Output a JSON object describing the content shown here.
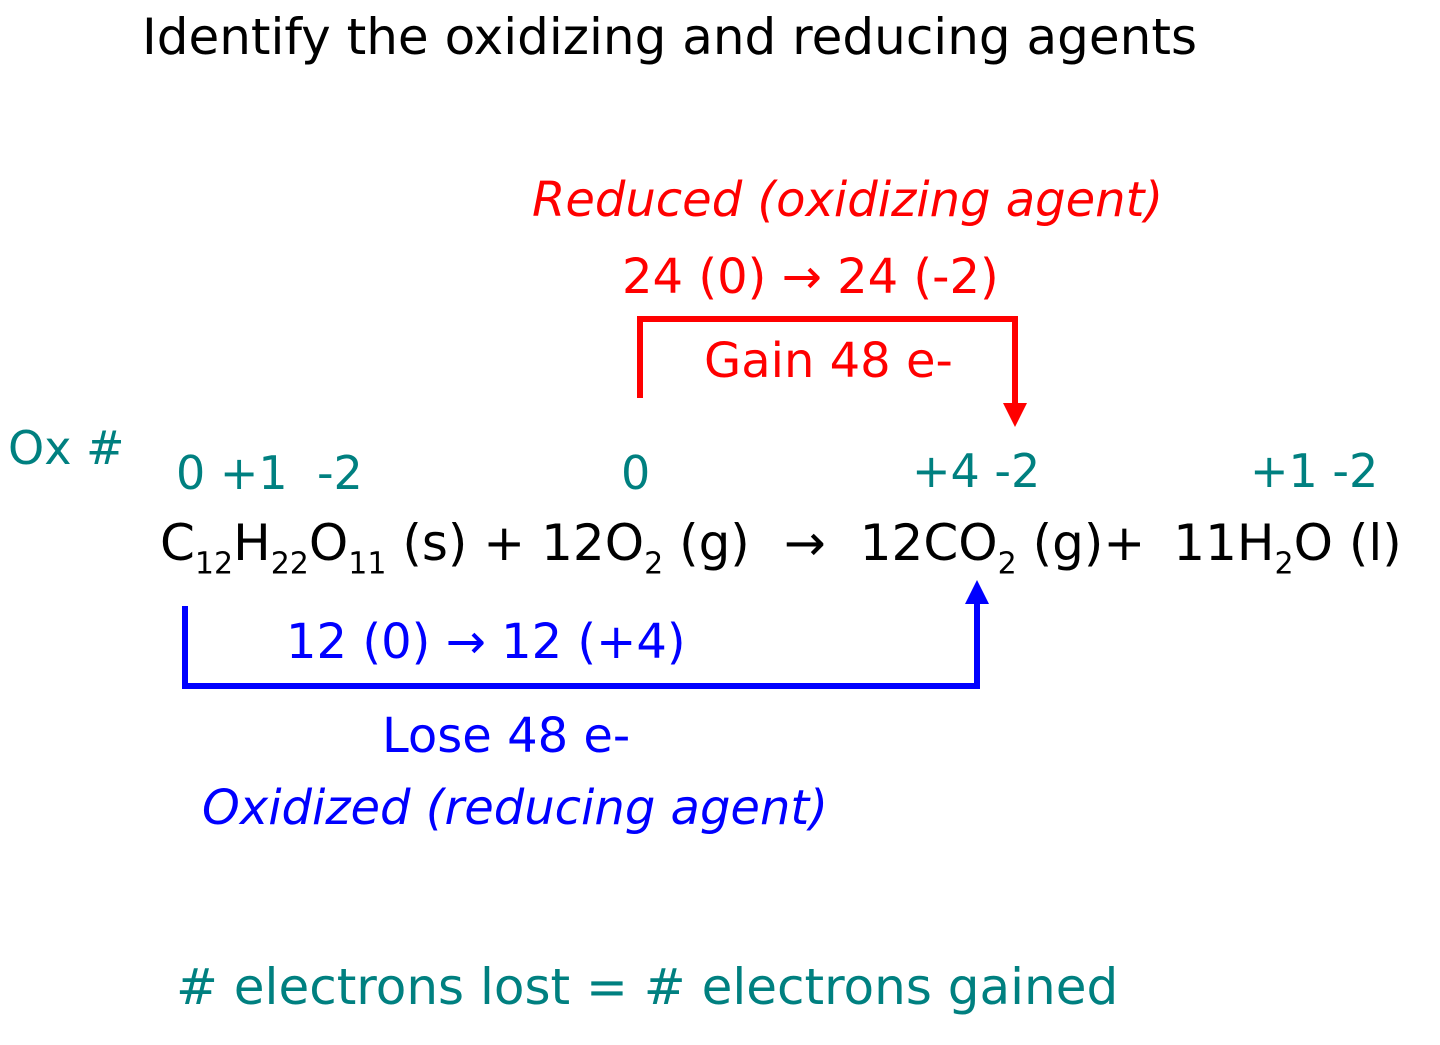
{
  "title": "Identify the oxidizing and reducing agents",
  "reduction": {
    "label": "Reduced (oxidizing agent)",
    "change": "24 (0) → 24 (-2)",
    "electrons": "Gain 48 e-",
    "color": "#ff0000"
  },
  "oxidation": {
    "change": "12 (0) → 12 (+4)",
    "electrons": "Lose 48 e-",
    "label": "Oxidized (reducing agent)",
    "color": "#0000ff"
  },
  "ox_numbers": {
    "header": "Ox #",
    "sucrose": "0 +1  -2",
    "oxygen": "0",
    "co2": "+4 -2",
    "water": "+1 -2",
    "color": "#008080"
  },
  "equation": {
    "c": "C",
    "c_sub": "12",
    "h": "H",
    "h_sub": "22",
    "o": "O",
    "o_sub": "11",
    "sucrose_state": " (s) + 12O",
    "o2_sub": "2",
    "o2_state": " (g)",
    "arrow": "→",
    "co2": "12CO",
    "co2_sub": "2",
    "co2_state": " (g)+",
    "h2o": "11H",
    "h2o_sub": "2",
    "h2o_state": "O (l)"
  },
  "footer": "# electrons lost = # electrons gained"
}
